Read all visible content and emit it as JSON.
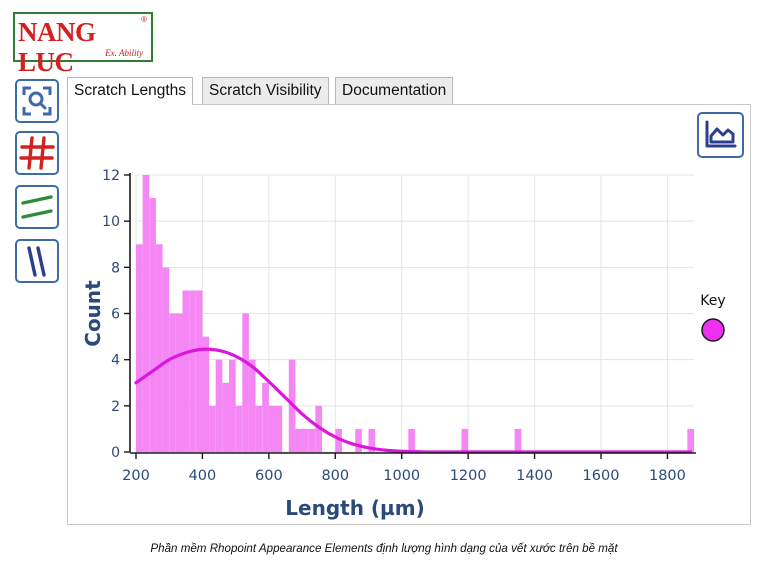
{
  "logo": {
    "main": "NANG LUC",
    "sub": "Ex. Ability",
    "reg": "®"
  },
  "toolbar": [
    {
      "name": "zoom-to-fit-icon",
      "color": "#3e6aa8"
    },
    {
      "name": "grid-icon",
      "color": "#d32020"
    },
    {
      "name": "horizontal-scratch-icon",
      "color": "#2e8b3a"
    },
    {
      "name": "vertical-scratch-icon",
      "color": "#2b3f8f"
    }
  ],
  "tabs": [
    "Scratch Lengths",
    "Scratch Visibility",
    "Documentation"
  ],
  "active_tab": 0,
  "chart_type_button": {
    "icon": "area-chart-icon"
  },
  "chart_data": {
    "type": "bar",
    "xlabel": "Length (µm)",
    "ylabel": "Count",
    "xlim": [
      200,
      1880
    ],
    "ylim": [
      0,
      12
    ],
    "xticks": [
      200,
      400,
      600,
      800,
      1000,
      1200,
      1400,
      1600,
      1800
    ],
    "yticks": [
      0,
      2,
      4,
      6,
      8,
      10,
      12
    ],
    "grid": true,
    "bin_width": 20,
    "bar_color": "#f587f5",
    "bins": [
      {
        "x": 200,
        "count": 9
      },
      {
        "x": 220,
        "count": 12
      },
      {
        "x": 240,
        "count": 11
      },
      {
        "x": 260,
        "count": 9
      },
      {
        "x": 280,
        "count": 8
      },
      {
        "x": 300,
        "count": 6
      },
      {
        "x": 320,
        "count": 6
      },
      {
        "x": 340,
        "count": 7
      },
      {
        "x": 360,
        "count": 7
      },
      {
        "x": 380,
        "count": 7
      },
      {
        "x": 400,
        "count": 5
      },
      {
        "x": 420,
        "count": 2
      },
      {
        "x": 440,
        "count": 4
      },
      {
        "x": 460,
        "count": 3
      },
      {
        "x": 480,
        "count": 4
      },
      {
        "x": 500,
        "count": 2
      },
      {
        "x": 520,
        "count": 6
      },
      {
        "x": 540,
        "count": 4
      },
      {
        "x": 560,
        "count": 2
      },
      {
        "x": 580,
        "count": 3
      },
      {
        "x": 600,
        "count": 2
      },
      {
        "x": 620,
        "count": 2
      },
      {
        "x": 660,
        "count": 4
      },
      {
        "x": 680,
        "count": 1
      },
      {
        "x": 700,
        "count": 1
      },
      {
        "x": 720,
        "count": 1
      },
      {
        "x": 740,
        "count": 2
      },
      {
        "x": 800,
        "count": 1
      },
      {
        "x": 860,
        "count": 1
      },
      {
        "x": 900,
        "count": 1
      },
      {
        "x": 1020,
        "count": 1
      },
      {
        "x": 1180,
        "count": 1
      },
      {
        "x": 1340,
        "count": 1
      },
      {
        "x": 1860,
        "count": 1
      }
    ],
    "fit_curve": {
      "color": "#dd16dd",
      "x": [
        200,
        250,
        300,
        350,
        400,
        450,
        500,
        550,
        600,
        650,
        700,
        750,
        800,
        850,
        900,
        950,
        1000,
        1050,
        1100,
        1200,
        1400,
        1600,
        1870
      ],
      "y": [
        3.0,
        3.5,
        4.0,
        4.3,
        4.45,
        4.4,
        4.15,
        3.7,
        3.05,
        2.35,
        1.65,
        1.08,
        0.65,
        0.36,
        0.18,
        0.08,
        0.03,
        0.01,
        0,
        0,
        0,
        0,
        0
      ]
    },
    "legend": {
      "title": "Key",
      "placement": "right",
      "marker_color": "#f030f0"
    }
  },
  "caption": "Phần mềm Rhopoint Appearance Elements định lượng hình dạng của vết xước trên bề mặt"
}
